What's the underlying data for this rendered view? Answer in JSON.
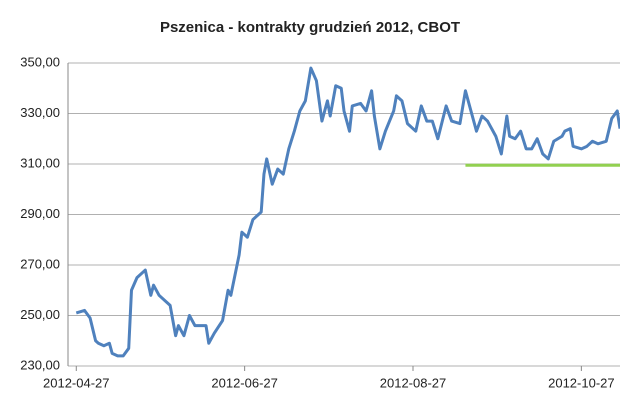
{
  "chart_data": {
    "type": "line",
    "title": "Pszenica - kontrakty grudzień 2012, CBOT",
    "x": [
      "2012-04-27",
      "2012-04-30",
      "2012-05-02",
      "2012-05-04",
      "2012-05-05",
      "2012-05-07",
      "2012-05-09",
      "2012-05-10",
      "2012-05-12",
      "2012-05-14",
      "2012-05-16",
      "2012-05-17",
      "2012-05-19",
      "2012-05-22",
      "2012-05-24",
      "2012-05-25",
      "2012-05-27",
      "2012-05-31",
      "2012-06-02",
      "2012-06-03",
      "2012-06-05",
      "2012-06-07",
      "2012-06-09",
      "2012-06-13",
      "2012-06-14",
      "2012-06-16",
      "2012-06-19",
      "2012-06-21",
      "2012-06-22",
      "2012-06-25",
      "2012-06-26",
      "2012-06-28",
      "2012-06-30",
      "2012-07-03",
      "2012-07-04",
      "2012-07-05",
      "2012-07-07",
      "2012-07-09",
      "2012-07-11",
      "2012-07-13",
      "2012-07-15",
      "2012-07-17",
      "2012-07-19",
      "2012-07-21",
      "2012-07-23",
      "2012-07-24",
      "2012-07-25",
      "2012-07-27",
      "2012-07-28",
      "2012-07-30",
      "2012-08-01",
      "2012-08-02",
      "2012-08-04",
      "2012-08-05",
      "2012-08-08",
      "2012-08-10",
      "2012-08-12",
      "2012-08-13",
      "2012-08-15",
      "2012-08-17",
      "2012-08-20",
      "2012-08-21",
      "2012-08-23",
      "2012-08-25",
      "2012-08-28",
      "2012-08-30",
      "2012-09-01",
      "2012-09-03",
      "2012-09-05",
      "2012-09-08",
      "2012-09-10",
      "2012-09-13",
      "2012-09-15",
      "2012-09-17",
      "2012-09-19",
      "2012-09-21",
      "2012-09-23",
      "2012-09-26",
      "2012-09-28",
      "2012-09-30",
      "2012-10-01",
      "2012-10-03",
      "2012-10-05",
      "2012-10-07",
      "2012-10-09",
      "2012-10-11",
      "2012-10-13",
      "2012-10-15",
      "2012-10-17",
      "2012-10-20",
      "2012-10-21",
      "2012-10-23",
      "2012-10-24",
      "2012-10-27",
      "2012-10-29",
      "2012-10-31",
      "2012-11-02",
      "2012-11-05",
      "2012-11-07",
      "2012-11-09",
      "2012-11-10"
    ],
    "series": [
      {
        "name": "Pszenica",
        "color": "#4f81bd",
        "values": [
          251,
          252,
          249,
          240,
          239,
          238,
          239,
          235,
          234,
          234,
          237,
          260,
          265,
          268,
          258,
          262,
          258,
          254,
          242,
          246,
          242,
          250,
          246,
          246,
          239,
          243,
          248,
          260,
          258,
          274,
          283,
          281,
          288,
          291,
          306,
          312,
          302,
          308,
          306,
          316,
          323,
          331,
          335,
          348,
          343,
          335,
          327,
          335,
          329,
          341,
          340,
          331,
          323,
          333,
          334,
          331,
          339,
          329,
          316,
          323,
          331,
          337,
          335,
          326,
          323,
          333,
          327,
          327,
          320,
          333,
          327,
          326,
          339,
          331,
          323,
          329,
          327,
          321,
          314,
          329,
          321,
          320,
          323,
          316,
          316,
          320,
          314,
          312,
          319,
          321,
          323,
          324,
          317,
          316,
          317,
          319,
          318,
          319,
          328,
          331,
          324
        ]
      }
    ],
    "reference_line": {
      "value": 309.5,
      "color": "#92d050",
      "x": [
        "2012-09-15",
        "2012-11-10"
      ]
    },
    "xlim": [
      "2012-04-24",
      "2012-11-10"
    ],
    "xticks": [
      "2012-04-27",
      "2012-06-27",
      "2012-08-27",
      "2012-10-27"
    ],
    "ylim": [
      230,
      350
    ],
    "yticks": [
      {
        "value": 230,
        "label": "230,00"
      },
      {
        "value": 250,
        "label": "250,00"
      },
      {
        "value": 270,
        "label": "270,00"
      },
      {
        "value": 290,
        "label": "290,00"
      },
      {
        "value": 310,
        "label": "310,00"
      },
      {
        "value": 330,
        "label": "330,00"
      },
      {
        "value": 350,
        "label": "350,00"
      }
    ],
    "grid": true
  }
}
